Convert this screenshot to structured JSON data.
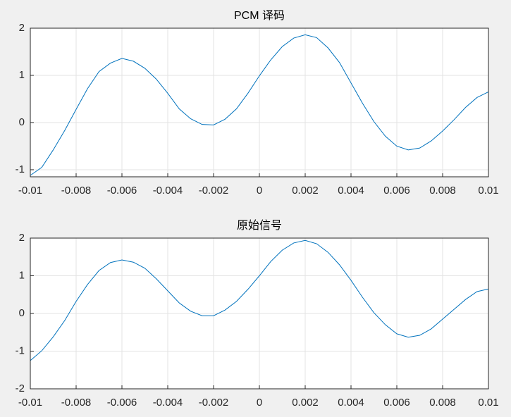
{
  "chart_data": [
    {
      "type": "line",
      "title": "PCM 译码",
      "color": "#0072bd",
      "grid": true,
      "x": [
        -0.01,
        -0.0095,
        -0.009,
        -0.0085,
        -0.008,
        -0.0075,
        -0.007,
        -0.0065,
        -0.006,
        -0.0055,
        -0.005,
        -0.0045,
        -0.004,
        -0.0035,
        -0.003,
        -0.0025,
        -0.002,
        -0.0015,
        -0.001,
        -0.0005,
        0,
        0.0005,
        0.001,
        0.0015,
        0.002,
        0.0025,
        0.003,
        0.0035,
        0.004,
        0.0045,
        0.005,
        0.0055,
        0.006,
        0.0065,
        0.007,
        0.0075,
        0.008,
        0.0085,
        0.009,
        0.0095,
        0.01
      ],
      "values": [
        -1.12,
        -0.95,
        -0.58,
        -0.17,
        0.28,
        0.72,
        1.08,
        1.26,
        1.36,
        1.3,
        1.15,
        0.92,
        0.62,
        0.29,
        0.08,
        -0.04,
        -0.05,
        0.07,
        0.29,
        0.62,
        0.99,
        1.33,
        1.61,
        1.79,
        1.86,
        1.8,
        1.58,
        1.27,
        0.84,
        0.41,
        0.02,
        -0.29,
        -0.5,
        -0.58,
        -0.54,
        -0.39,
        -0.18,
        0.06,
        0.32,
        0.53,
        0.65
      ],
      "xlim": [
        -0.01,
        0.01
      ],
      "xticks": [
        -0.01,
        -0.008,
        -0.006,
        -0.004,
        -0.002,
        0,
        0.002,
        0.004,
        0.006,
        0.008,
        0.01
      ],
      "ylim": [
        -1.15,
        2
      ],
      "yticks": [
        -1,
        0,
        1,
        2
      ]
    },
    {
      "type": "line",
      "title": "原始信号",
      "color": "#0072bd",
      "grid": true,
      "x": [
        -0.01,
        -0.0095,
        -0.009,
        -0.0085,
        -0.008,
        -0.0075,
        -0.007,
        -0.0065,
        -0.006,
        -0.0055,
        -0.005,
        -0.0045,
        -0.004,
        -0.0035,
        -0.003,
        -0.0025,
        -0.002,
        -0.0015,
        -0.001,
        -0.0005,
        0,
        0.0005,
        0.001,
        0.0015,
        0.002,
        0.0025,
        0.003,
        0.0035,
        0.004,
        0.0045,
        0.005,
        0.0055,
        0.006,
        0.0065,
        0.007,
        0.0075,
        0.008,
        0.0085,
        0.009,
        0.0095,
        0.01
      ],
      "values": [
        -1.25,
        -0.99,
        -0.62,
        -0.19,
        0.32,
        0.77,
        1.14,
        1.35,
        1.42,
        1.36,
        1.2,
        0.92,
        0.6,
        0.28,
        0.06,
        -0.06,
        -0.06,
        0.09,
        0.32,
        0.64,
        1.0,
        1.38,
        1.68,
        1.87,
        1.94,
        1.85,
        1.62,
        1.29,
        0.88,
        0.43,
        0.02,
        -0.3,
        -0.54,
        -0.63,
        -0.58,
        -0.41,
        -0.15,
        0.11,
        0.37,
        0.58,
        0.65
      ],
      "xlim": [
        -0.01,
        0.01
      ],
      "xticks": [
        -0.01,
        -0.008,
        -0.006,
        -0.004,
        -0.002,
        0,
        0.002,
        0.004,
        0.006,
        0.008,
        0.01
      ],
      "ylim": [
        -2,
        2
      ],
      "yticks": [
        -2,
        -1,
        0,
        1,
        2
      ]
    }
  ]
}
